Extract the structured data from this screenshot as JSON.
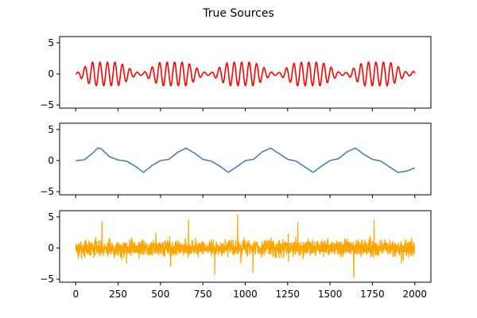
{
  "figure": {
    "title": "True Sources",
    "background": "#ffffff",
    "sharex_ticks": [
      "0",
      "250",
      "500",
      "750",
      "1000",
      "1250",
      "1500",
      "1750",
      "2000"
    ]
  },
  "chart_data": [
    {
      "type": "line",
      "series": [
        {
          "color": "#ff0000",
          "generator": "amplitude-modulated sine: 2*sin(2*pi*t/44)*|sin(2*pi*t/240)| (approx.)",
          "x": [
            0,
            50,
            100,
            150,
            200,
            250,
            300,
            350,
            400,
            450,
            500,
            550,
            600,
            650,
            700,
            750,
            800,
            850,
            900,
            950,
            1000,
            1050,
            1100,
            1150,
            1200,
            1250,
            1300,
            1350,
            1400,
            1450,
            1500,
            1550,
            1600,
            1650,
            1700,
            1750,
            1800,
            1850,
            1900,
            1950,
            2000
          ],
          "envelope": [
            0.0,
            1.1,
            1.9,
            1.9,
            1.9,
            1.9,
            1.2,
            0.3,
            0.2,
            1.1,
            1.9,
            1.9,
            1.9,
            1.9,
            1.2,
            0.3,
            0.2,
            1.1,
            1.9,
            1.9,
            1.9,
            1.9,
            1.2,
            0.3,
            0.2,
            1.1,
            1.9,
            1.9,
            1.9,
            1.9,
            1.2,
            0.3,
            0.2,
            1.1,
            1.9,
            1.9,
            1.9,
            1.9,
            1.2,
            0.3,
            0.4
          ]
        }
      ],
      "xlim": [
        -95,
        2095
      ],
      "ylim": [
        -5.5,
        6
      ],
      "yticks": [
        "5",
        "0",
        "−5"
      ],
      "xticks": [
        "0",
        "250",
        "500",
        "750",
        "1000",
        "1250",
        "1500",
        "1750",
        "2000"
      ]
    },
    {
      "type": "line",
      "series": [
        {
          "color": "#4682b4",
          "generator": "smooth periodic wave (period ~520): peaks ~2, troughs ~-2 (approx.)",
          "x": [
            0,
            50,
            100,
            130,
            150,
            200,
            250,
            300,
            350,
            400,
            450,
            500,
            550,
            600,
            650,
            700,
            750,
            800,
            850,
            900,
            950,
            1000,
            1050,
            1100,
            1150,
            1200,
            1250,
            1300,
            1350,
            1400,
            1450,
            1500,
            1550,
            1600,
            1650,
            1700,
            1750,
            1800,
            1850,
            1900,
            1950,
            2000
          ],
          "values": [
            0,
            0.1,
            1.2,
            2.0,
            1.9,
            0.6,
            0.1,
            -0.1,
            -0.9,
            -1.9,
            -0.8,
            0,
            0.2,
            1.3,
            2.0,
            1.2,
            0.2,
            -0.1,
            -0.9,
            -1.9,
            -1.0,
            0,
            0.2,
            1.4,
            2.0,
            1.1,
            0.2,
            -0.1,
            -1.0,
            -1.9,
            -0.9,
            0,
            0.3,
            1.4,
            2.0,
            1.0,
            0.2,
            -0.1,
            -1.0,
            -1.9,
            -1.7,
            -1.2
          ]
        }
      ],
      "xlim": [
        -95,
        2095
      ],
      "ylim": [
        -5.5,
        6
      ],
      "yticks": [
        "5",
        "0",
        "−5"
      ],
      "xticks": [
        "0",
        "250",
        "500",
        "750",
        "1000",
        "1250",
        "1500",
        "1750",
        "2000"
      ]
    },
    {
      "type": "line",
      "series": [
        {
          "color": "#ffa500",
          "generator": "random noise around 0, mostly within ±2, extremes about +5.4 and −4.8 (approx.)",
          "n_points": 2000,
          "spikes": [
            {
              "x": 155,
              "y": 4.3
            },
            {
              "x": 300,
              "y": -2.5
            },
            {
              "x": 560,
              "y": -3.0
            },
            {
              "x": 665,
              "y": 4.6
            },
            {
              "x": 820,
              "y": -4.3
            },
            {
              "x": 955,
              "y": 5.4
            },
            {
              "x": 1045,
              "y": -4.0
            },
            {
              "x": 1310,
              "y": 4.2
            },
            {
              "x": 1640,
              "y": -4.8
            },
            {
              "x": 1760,
              "y": 4.5
            }
          ]
        }
      ],
      "xlim": [
        -95,
        2095
      ],
      "ylim": [
        -5.5,
        6
      ],
      "yticks": [
        "5",
        "0",
        "−5"
      ],
      "xticks": [
        "0",
        "250",
        "500",
        "750",
        "1000",
        "1250",
        "1500",
        "1750",
        "2000"
      ]
    }
  ]
}
